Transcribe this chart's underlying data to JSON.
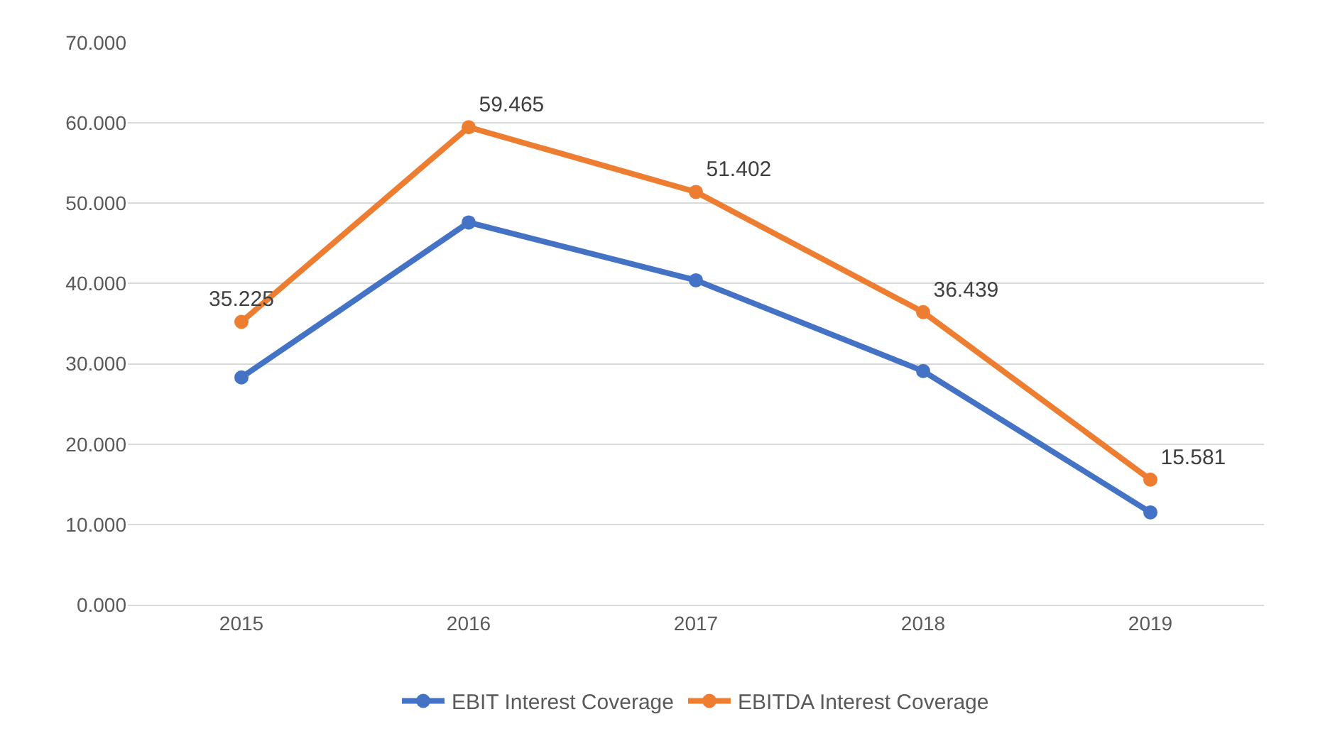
{
  "chart_data": {
    "type": "line",
    "categories": [
      "2015",
      "2016",
      "2017",
      "2018",
      "2019"
    ],
    "series": [
      {
        "name": "EBIT Interest Coverage",
        "color": "#4472c4",
        "values": [
          28.3,
          47.6,
          40.4,
          29.1,
          11.5
        ]
      },
      {
        "name": "EBITDA Interest Coverage",
        "color": "#ed7d31",
        "values": [
          35.225,
          59.465,
          51.402,
          36.439,
          15.581
        ],
        "value_labels": [
          "35.225",
          "59.465",
          "51.402",
          "36.439",
          "15.581"
        ]
      }
    ],
    "ylim": [
      0,
      70
    ],
    "yticks": [
      {
        "value": 0,
        "label": "0.000"
      },
      {
        "value": 10,
        "label": "10.000"
      },
      {
        "value": 20,
        "label": "20.000"
      },
      {
        "value": 30,
        "label": "30.000"
      },
      {
        "value": 40,
        "label": "40.000"
      },
      {
        "value": 50,
        "label": "50.000"
      },
      {
        "value": 60,
        "label": "60.000"
      },
      {
        "value": 70,
        "label": "70.000"
      }
    ],
    "grid": "y",
    "legend": "bottom",
    "marker": "circle",
    "line_style": "solid"
  }
}
